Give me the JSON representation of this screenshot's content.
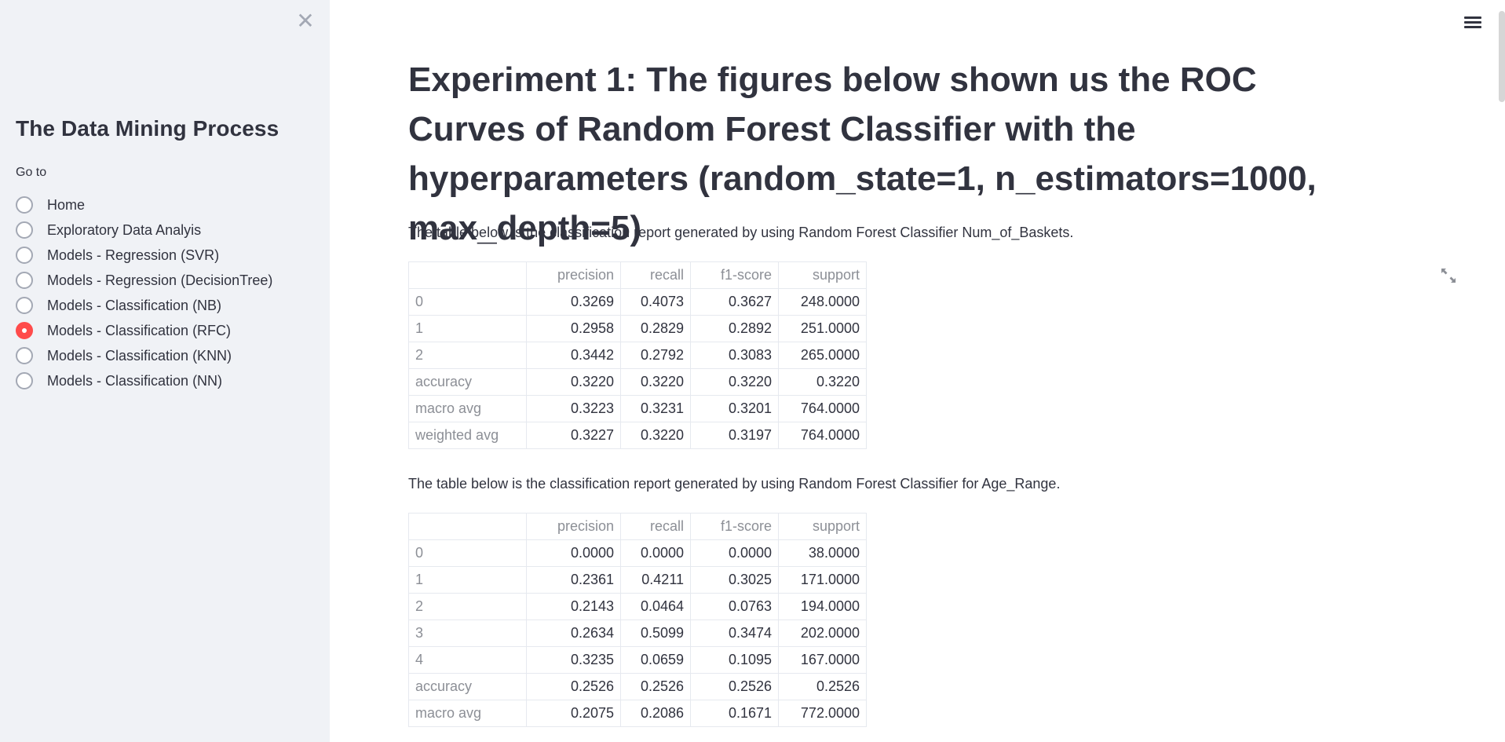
{
  "sidebar": {
    "close_symbol": "✕",
    "title": "The Data Mining Process",
    "goto_label": "Go to",
    "items": [
      {
        "label": "Home",
        "selected": false
      },
      {
        "label": "Exploratory Data Analyis",
        "selected": false
      },
      {
        "label": "Models - Regression (SVR)",
        "selected": false
      },
      {
        "label": "Models - Regression (DecisionTree)",
        "selected": false
      },
      {
        "label": "Models - Classification (NB)",
        "selected": false
      },
      {
        "label": "Models - Classification (RFC)",
        "selected": true
      },
      {
        "label": "Models - Classification (KNN)",
        "selected": false
      },
      {
        "label": "Models - Classification (NN)",
        "selected": false
      }
    ]
  },
  "main": {
    "heading": "Experiment 1: The figures below shown us the ROC Curves of Random Forest Classifier with the hyperparameters (random_state=1, n_estimators=1000, max_depth=5)",
    "desc1": "The table below is the classification report generated by using Random Forest Classifier Num_of_Baskets.",
    "desc2": "The table below is the classification report generated by using Random Forest Classifier for Age_Range.",
    "table1": {
      "headers": [
        "",
        "precision",
        "recall",
        "f1-score",
        "support"
      ],
      "rows": [
        [
          "0",
          "0.3269",
          "0.4073",
          "0.3627",
          "248.0000"
        ],
        [
          "1",
          "0.2958",
          "0.2829",
          "0.2892",
          "251.0000"
        ],
        [
          "2",
          "0.3442",
          "0.2792",
          "0.3083",
          "265.0000"
        ],
        [
          "accuracy",
          "0.3220",
          "0.3220",
          "0.3220",
          "0.3220"
        ],
        [
          "macro avg",
          "0.3223",
          "0.3231",
          "0.3201",
          "764.0000"
        ],
        [
          "weighted avg",
          "0.3227",
          "0.3220",
          "0.3197",
          "764.0000"
        ]
      ]
    },
    "table2": {
      "headers": [
        "",
        "precision",
        "recall",
        "f1-score",
        "support"
      ],
      "rows": [
        [
          "0",
          "0.0000",
          "0.0000",
          "0.0000",
          "38.0000"
        ],
        [
          "1",
          "0.2361",
          "0.4211",
          "0.3025",
          "171.0000"
        ],
        [
          "2",
          "0.2143",
          "0.0464",
          "0.0763",
          "194.0000"
        ],
        [
          "3",
          "0.2634",
          "0.5099",
          "0.3474",
          "202.0000"
        ],
        [
          "4",
          "0.3235",
          "0.0659",
          "0.1095",
          "167.0000"
        ],
        [
          "accuracy",
          "0.2526",
          "0.2526",
          "0.2526",
          "0.2526"
        ],
        [
          "macro avg",
          "0.2075",
          "0.2086",
          "0.1671",
          "772.0000"
        ]
      ]
    }
  },
  "colors": {
    "accent": "#ff4b4b",
    "sidebar_bg": "#f0f2f6",
    "text": "#31333f",
    "muted": "#8c8f96"
  },
  "icons": {
    "close": "close-icon",
    "menu": "hamburger-menu-icon",
    "expand": "fullscreen-expand-icon"
  }
}
